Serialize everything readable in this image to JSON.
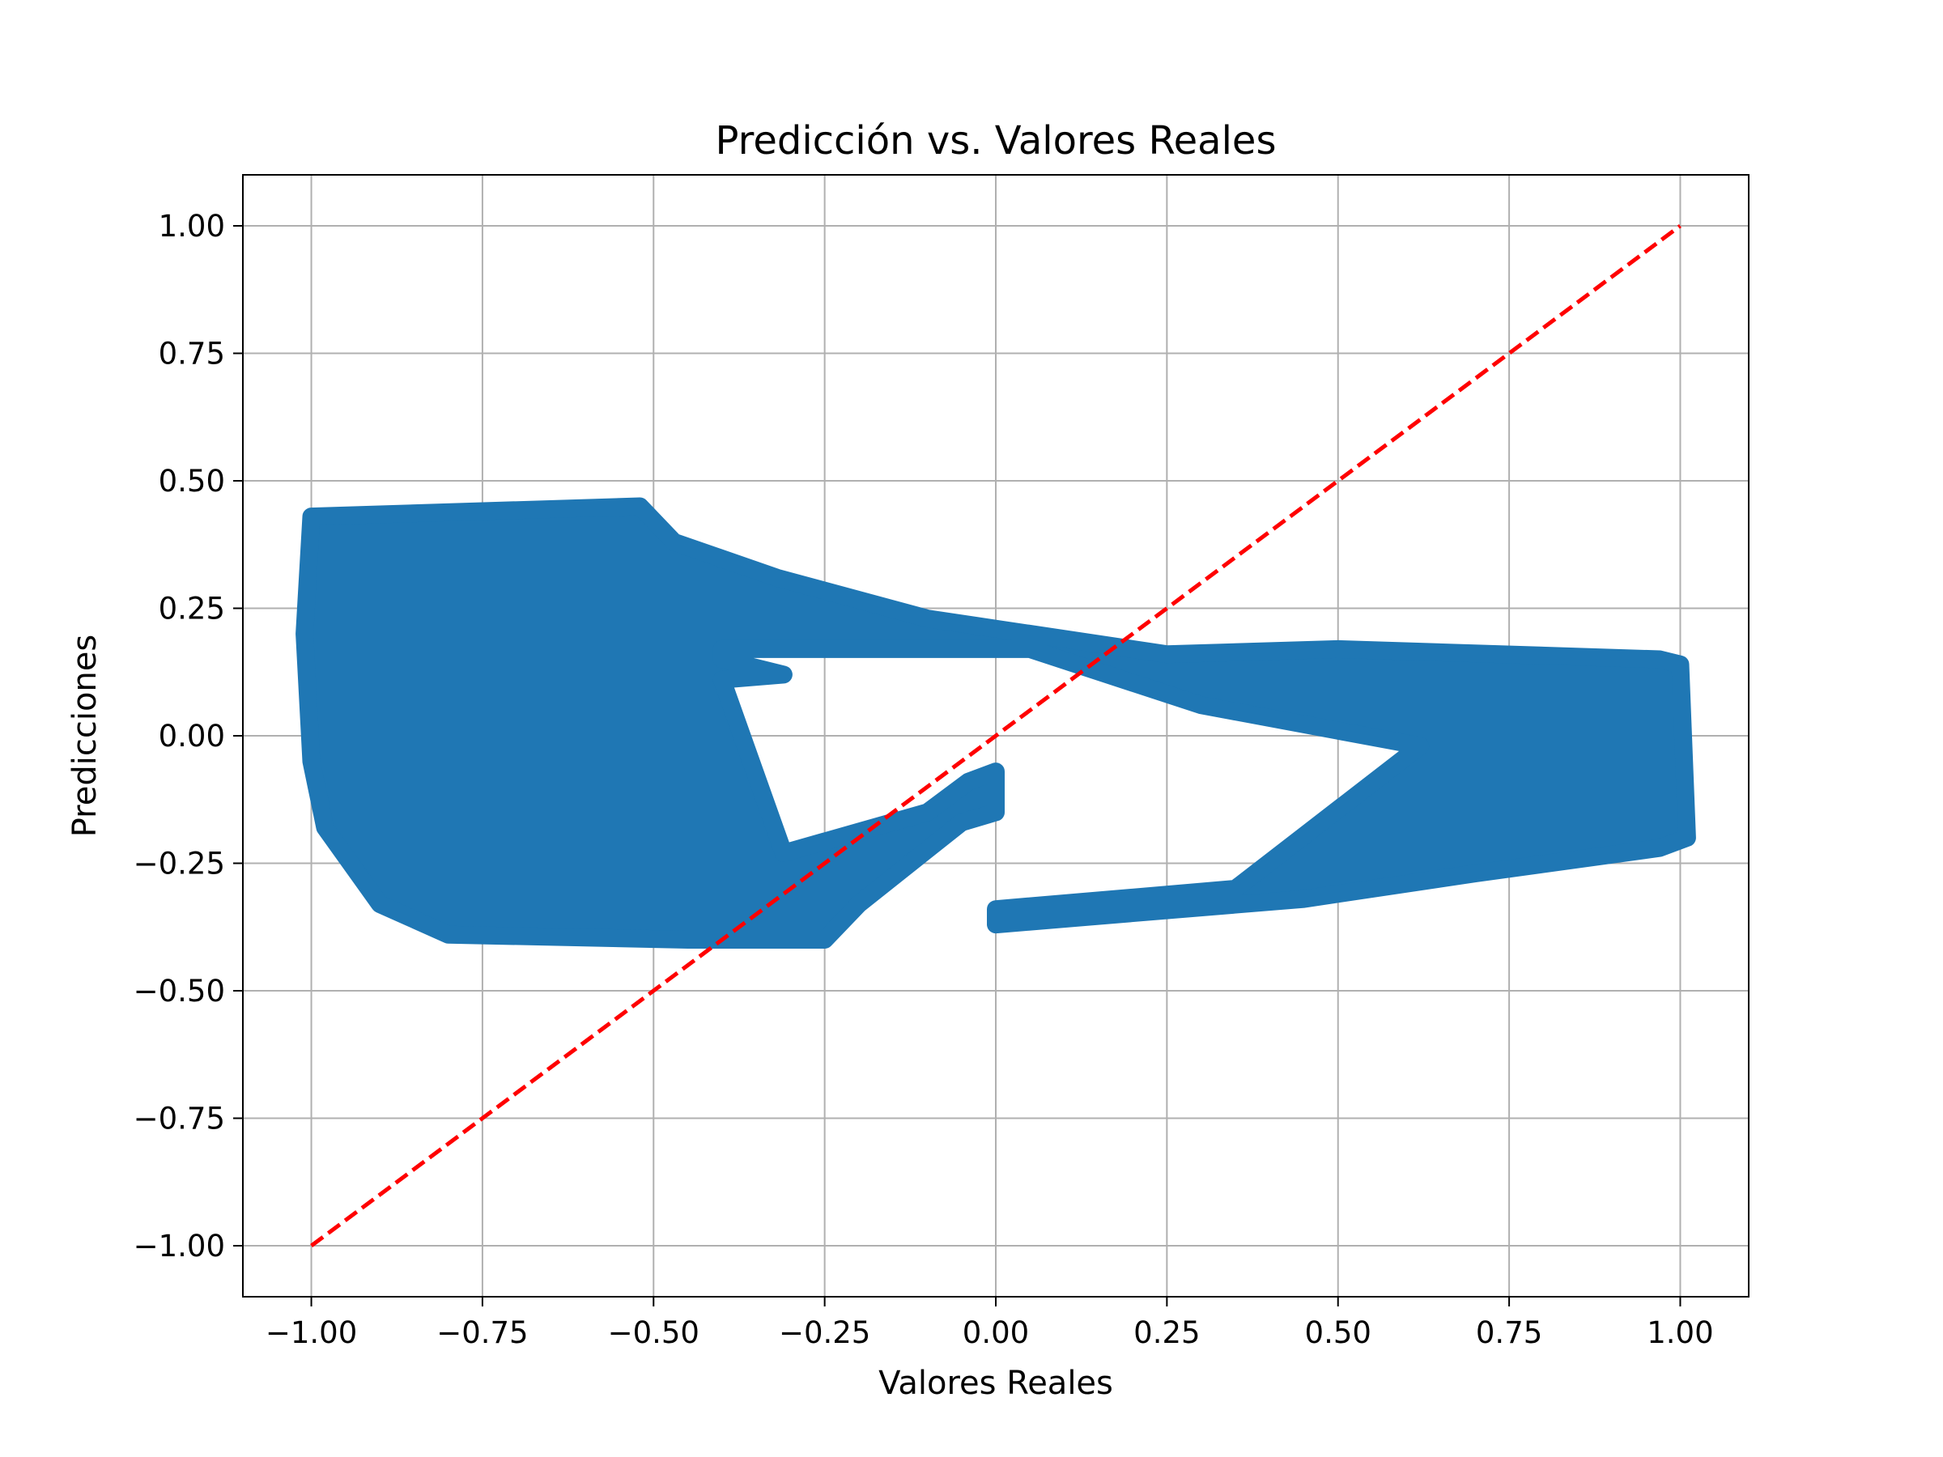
{
  "chart_data": {
    "type": "scatter",
    "title": "Predicción vs. Valores Reales",
    "xlabel": "Valores Reales",
    "ylabel": "Predicciones",
    "xlim": [
      -1.1,
      1.1
    ],
    "ylim": [
      -1.1,
      1.1
    ],
    "grid": true,
    "x_ticks": [
      -1.0,
      -0.75,
      -0.5,
      -0.25,
      0.0,
      0.25,
      0.5,
      0.75,
      1.0
    ],
    "y_ticks": [
      -1.0,
      -0.75,
      -0.5,
      -0.25,
      0.0,
      0.25,
      0.5,
      0.75,
      1.0
    ],
    "x_tick_labels": [
      "−1.00",
      "−0.75",
      "−0.50",
      "−0.25",
      "0.00",
      "0.25",
      "0.50",
      "0.75",
      "1.00"
    ],
    "y_tick_labels": [
      "−1.00",
      "−0.75",
      "−0.50",
      "−0.25",
      "0.00",
      "0.25",
      "0.50",
      "0.75",
      "1.00"
    ],
    "scatter_color": "#1f77b4",
    "scatter_regions": [
      [
        [
          -1.0,
          0.43
        ],
        [
          -0.52,
          0.45
        ],
        [
          -0.47,
          0.38
        ],
        [
          -0.32,
          0.31
        ],
        [
          -0.1,
          0.23
        ],
        [
          0.0,
          0.21
        ],
        [
          0.25,
          0.16
        ],
        [
          0.5,
          0.17
        ],
        [
          0.97,
          0.15
        ],
        [
          1.0,
          0.14
        ],
        [
          1.01,
          -0.2
        ],
        [
          0.97,
          -0.22
        ],
        [
          0.7,
          -0.27
        ],
        [
          0.45,
          -0.32
        ],
        [
          0.0,
          -0.37
        ],
        [
          0.0,
          -0.34
        ],
        [
          0.35,
          -0.3
        ],
        [
          0.62,
          -0.02
        ],
        [
          0.3,
          0.06
        ],
        [
          0.05,
          0.17
        ],
        [
          0.0,
          0.17
        ],
        [
          -0.1,
          0.17
        ],
        [
          -0.4,
          0.17
        ],
        [
          -0.4,
          0.15
        ],
        [
          -0.31,
          0.12
        ],
        [
          -0.4,
          0.11
        ],
        [
          -0.31,
          -0.23
        ],
        [
          -0.1,
          -0.15
        ],
        [
          -0.04,
          -0.09
        ],
        [
          0.0,
          -0.07
        ],
        [
          0.0,
          -0.15
        ],
        [
          -0.05,
          -0.17
        ],
        [
          -0.2,
          -0.33
        ],
        [
          -0.25,
          -0.4
        ],
        [
          -0.45,
          -0.4
        ],
        [
          -0.8,
          -0.39
        ],
        [
          -0.9,
          -0.33
        ],
        [
          -0.98,
          -0.18
        ],
        [
          -1.0,
          -0.05
        ],
        [
          -1.01,
          0.2
        ]
      ]
    ],
    "reference_line": {
      "x": [
        -1.0,
        1.0
      ],
      "y": [
        -1.0,
        1.0
      ],
      "color": "#ff0000",
      "style": "dashed"
    }
  }
}
